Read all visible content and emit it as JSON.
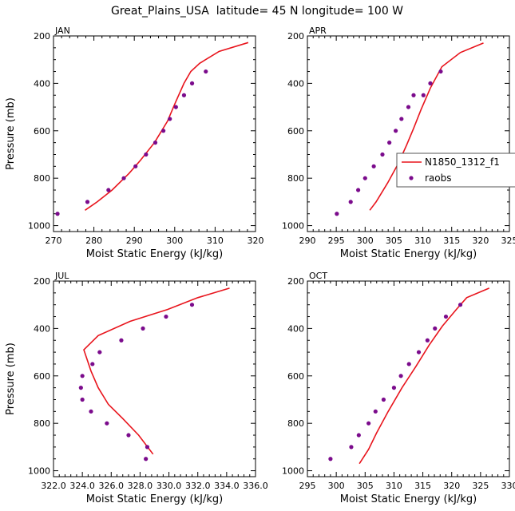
{
  "title": "Great_Plains_USA  latitude= 45 N longitude= 100 W",
  "colors": {
    "model": "#e8141c",
    "obs": "#7b0b8c",
    "axis": "#000000"
  },
  "legend": {
    "entries": [
      "N1850_1312_f1",
      "raobs"
    ],
    "placement": "right of APR panel"
  },
  "chart_data": [
    {
      "type": "line",
      "panel": "JAN",
      "xlabel": "Moist Static Energy (kJ/kg)",
      "ylabel": "Pressure (mb)",
      "xlim": [
        270,
        320
      ],
      "ylim": [
        1025,
        200
      ],
      "xticks": [
        "270",
        "280",
        "290",
        "300",
        "310",
        "320"
      ],
      "yticks": [
        "200",
        "400",
        "600",
        "800",
        "1000"
      ],
      "series": [
        {
          "name": "N1850_1312_f1",
          "style": "line",
          "x": [
            277.8,
            280.8,
            284.5,
            288.7,
            291.5,
            295.0,
            298.2,
            300.2,
            302.3,
            304.0,
            306.2,
            311.0,
            318.2
          ],
          "y": [
            935,
            900,
            850,
            780,
            725,
            650,
            560,
            480,
            400,
            350,
            315,
            265,
            228
          ]
        },
        {
          "name": "raobs",
          "style": "points",
          "x": [
            271.0,
            278.4,
            283.6,
            287.4,
            290.3,
            292.9,
            295.2,
            297.2,
            298.8,
            300.3,
            302.3,
            304.3,
            307.7
          ],
          "y": [
            950,
            900,
            850,
            800,
            750,
            700,
            650,
            600,
            550,
            500,
            450,
            400,
            350
          ]
        }
      ]
    },
    {
      "type": "line",
      "panel": "APR",
      "xlabel": "Moist Static Energy (kJ/kg)",
      "ylabel": "",
      "xlim": [
        290,
        325
      ],
      "ylim": [
        1025,
        200
      ],
      "xticks": [
        "290",
        "295",
        "300",
        "305",
        "310",
        "315",
        "320",
        "325"
      ],
      "yticks": [
        "200",
        "400",
        "600",
        "800",
        "1000"
      ],
      "series": [
        {
          "name": "N1850_1312_f1",
          "style": "line",
          "x": [
            300.8,
            301.9,
            303.9,
            305.7,
            307.2,
            308.4,
            309.7,
            311.3,
            313.3,
            316.5,
            320.5
          ],
          "y": [
            935,
            900,
            820,
            740,
            660,
            590,
            510,
            420,
            330,
            270,
            230
          ]
        },
        {
          "name": "raobs",
          "style": "points",
          "x": [
            295.1,
            297.5,
            298.8,
            300.0,
            301.5,
            303.0,
            304.2,
            305.3,
            306.3,
            307.5,
            308.4,
            310.1,
            311.3,
            313.1
          ],
          "y": [
            950,
            900,
            850,
            800,
            750,
            700,
            650,
            600,
            550,
            500,
            450,
            450,
            400,
            350
          ]
        }
      ]
    },
    {
      "type": "line",
      "panel": "JUL",
      "xlabel": "Moist Static Energy (kJ/kg)",
      "ylabel": "Pressure (mb)",
      "xlim": [
        322.0,
        336.0
      ],
      "ylim": [
        1025,
        200
      ],
      "xticks": [
        "322.0",
        "324.0",
        "326.0",
        "328.0",
        "330.0",
        "332.0",
        "334.0",
        "336.0"
      ],
      "yticks": [
        "200",
        "400",
        "600",
        "800",
        "1000"
      ],
      "series": [
        {
          "name": "N1850_1312_f1",
          "style": "line",
          "x": [
            328.9,
            327.9,
            326.8,
            325.8,
            325.1,
            324.6,
            324.1,
            325.1,
            327.3,
            329.9,
            332.0,
            334.2
          ],
          "y": [
            930,
            850,
            780,
            720,
            650,
            580,
            490,
            430,
            370,
            320,
            270,
            230
          ]
        },
        {
          "name": "raobs",
          "style": "points",
          "x": [
            328.5,
            328.4,
            327.2,
            325.7,
            324.6,
            324.0,
            323.9,
            324.0,
            324.7,
            325.2,
            326.7,
            328.2,
            329.8,
            331.6
          ],
          "y": [
            900,
            950,
            850,
            800,
            750,
            700,
            650,
            600,
            550,
            500,
            450,
            400,
            350,
            300
          ]
        }
      ]
    },
    {
      "type": "line",
      "panel": "OCT",
      "xlabel": "Moist Static Energy (kJ/kg)",
      "ylabel": "",
      "xlim": [
        295,
        330
      ],
      "ylim": [
        1025,
        200
      ],
      "xticks": [
        "295",
        "300",
        "305",
        "310",
        "315",
        "320",
        "325",
        "330"
      ],
      "yticks": [
        "200",
        "400",
        "600",
        "800",
        "1000"
      ],
      "series": [
        {
          "name": "N1850_1312_f1",
          "style": "line",
          "x": [
            304.0,
            305.6,
            307.0,
            309.0,
            311.4,
            313.8,
            316.1,
            318.4,
            320.8,
            322.6,
            326.5
          ],
          "y": [
            970,
            910,
            840,
            750,
            650,
            560,
            470,
            390,
            320,
            270,
            230
          ]
        },
        {
          "name": "raobs",
          "style": "points",
          "x": [
            299.0,
            302.6,
            303.9,
            305.6,
            306.8,
            308.2,
            310.0,
            311.2,
            312.6,
            314.3,
            315.8,
            317.1,
            319.0,
            321.5
          ],
          "y": [
            950,
            900,
            850,
            800,
            750,
            700,
            650,
            600,
            550,
            500,
            450,
            400,
            350,
            300
          ]
        }
      ]
    }
  ]
}
